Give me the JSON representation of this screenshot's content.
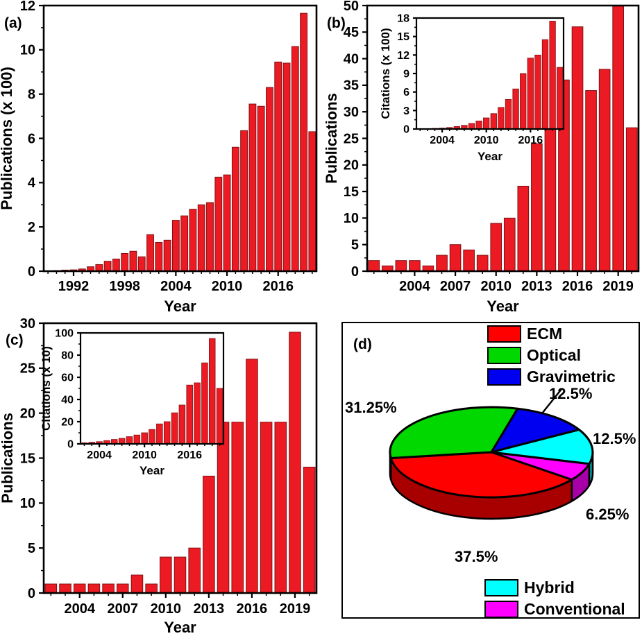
{
  "chart_data": [
    {
      "id": "a",
      "type": "bar",
      "panel_label": "(a)",
      "xlabel": "Year",
      "ylabel": "Publications (x 100)",
      "categories": [
        1989,
        1990,
        1991,
        1992,
        1993,
        1994,
        1995,
        1996,
        1997,
        1998,
        1999,
        2000,
        2001,
        2002,
        2003,
        2004,
        2005,
        2006,
        2007,
        2008,
        2009,
        2010,
        2011,
        2012,
        2013,
        2014,
        2015,
        2016,
        2017,
        2018,
        2019,
        2020
      ],
      "values": [
        0.02,
        0.03,
        0.05,
        0.06,
        0.1,
        0.2,
        0.3,
        0.45,
        0.55,
        0.8,
        0.9,
        0.65,
        1.65,
        1.3,
        1.4,
        2.3,
        2.5,
        2.8,
        3.0,
        3.1,
        4.25,
        4.35,
        5.6,
        6.35,
        7.55,
        7.45,
        8.3,
        9.45,
        9.4,
        10.15,
        11.65,
        6.3
      ],
      "ylim": [
        0,
        12
      ],
      "yticks": [
        0,
        2,
        4,
        6,
        8,
        10,
        12
      ],
      "xticks": [
        1992,
        1998,
        2004,
        2010,
        2016
      ],
      "bar_color": "#EC1B23",
      "bar_edge": "#7E1013"
    },
    {
      "id": "b",
      "type": "bar",
      "panel_label": "(b)",
      "xlabel": "Year",
      "ylabel": "Publications",
      "categories": [
        2001,
        2002,
        2003,
        2004,
        2005,
        2006,
        2007,
        2008,
        2009,
        2010,
        2011,
        2012,
        2013,
        2014,
        2015,
        2016,
        2017,
        2018,
        2019,
        2020
      ],
      "values": [
        2,
        1,
        2,
        2,
        1,
        3,
        5,
        4,
        3,
        9,
        10,
        16,
        24,
        31,
        36,
        46,
        34,
        38,
        50,
        27
      ],
      "ylim": [
        0,
        50
      ],
      "yticks": [
        0,
        5,
        10,
        15,
        20,
        25,
        30,
        35,
        40,
        45,
        50
      ],
      "xticks": [
        2004,
        2007,
        2010,
        2013,
        2016,
        2019
      ],
      "bar_color": "#EC1B23",
      "bar_edge": "#7E1013"
    },
    {
      "id": "b_inset",
      "type": "bar",
      "inset_of": "b",
      "xlabel": "Year",
      "ylabel": "Citations (x 100)",
      "categories": [
        2001,
        2002,
        2003,
        2004,
        2005,
        2006,
        2007,
        2008,
        2009,
        2010,
        2011,
        2012,
        2013,
        2014,
        2015,
        2016,
        2017,
        2018,
        2019,
        2020
      ],
      "values": [
        0.03,
        0.05,
        0.1,
        0.15,
        0.25,
        0.4,
        0.6,
        0.9,
        1.3,
        1.8,
        2.5,
        3.5,
        4.8,
        6.5,
        9,
        11.5,
        12,
        14.5,
        17.5,
        10
      ],
      "ylim": [
        0,
        18
      ],
      "yticks": [
        0,
        3,
        6,
        9,
        12,
        15,
        18
      ],
      "xticks": [
        2004,
        2010,
        2016
      ],
      "bar_color": "#EC1B23",
      "bar_edge": "#7E1013"
    },
    {
      "id": "c",
      "type": "bar",
      "panel_label": "(c)",
      "xlabel": "Year",
      "ylabel": "Publications",
      "categories": [
        2002,
        2003,
        2004,
        2005,
        2006,
        2007,
        2008,
        2009,
        2010,
        2011,
        2012,
        2013,
        2014,
        2015,
        2016,
        2017,
        2018,
        2019,
        2020
      ],
      "values": [
        1,
        1,
        1,
        1,
        1,
        1,
        2,
        1,
        4,
        4,
        5,
        13,
        19,
        19,
        26,
        19,
        19,
        29,
        14
      ],
      "ylim": [
        0,
        30
      ],
      "yticks": [
        0,
        5,
        10,
        15,
        20,
        25,
        30
      ],
      "xticks": [
        2004,
        2007,
        2010,
        2013,
        2016,
        2019
      ],
      "bar_color": "#EC1B23",
      "bar_edge": "#7E1013"
    },
    {
      "id": "c_inset",
      "type": "bar",
      "inset_of": "c",
      "xlabel": "Year",
      "ylabel": "Citations (x 10)",
      "categories": [
        2002,
        2003,
        2004,
        2005,
        2006,
        2007,
        2008,
        2009,
        2010,
        2011,
        2012,
        2013,
        2014,
        2015,
        2016,
        2017,
        2018,
        2019,
        2020
      ],
      "values": [
        1,
        1.5,
        2,
        3,
        4,
        5,
        6.5,
        8,
        10,
        13,
        18,
        20,
        28,
        35,
        53,
        55,
        73,
        95,
        50
      ],
      "ylim": [
        0,
        100
      ],
      "yticks": [
        0,
        20,
        40,
        60,
        80,
        100
      ],
      "xticks": [
        2004,
        2010,
        2016
      ],
      "bar_color": "#EC1B23",
      "bar_edge": "#7E1013"
    },
    {
      "id": "d",
      "type": "pie",
      "panel_label": "(d)",
      "slices": [
        {
          "label": "ECM",
          "pct": 37.5,
          "pct_label": "37.5%",
          "color": "#FE0000"
        },
        {
          "label": "Optical",
          "pct": 31.25,
          "pct_label": "31.25%",
          "color": "#00D800"
        },
        {
          "label": "Gravimetric",
          "pct": 12.5,
          "pct_label": "12.5%",
          "color": "#0000F0"
        },
        {
          "label": "Hybrid",
          "pct": 12.5,
          "pct_label": "12.5%",
          "color": "#00FFFF"
        },
        {
          "label": "Conventional",
          "pct": 6.25,
          "pct_label": "6.25%",
          "color": "#FF00FF"
        }
      ],
      "legend_top": [
        "ECM",
        "Optical",
        "Gravimetric"
      ],
      "legend_bottom": [
        "Hybrid",
        "Conventional"
      ],
      "start_deg": 15,
      "draw_order": [
        "Conventional",
        "ECM",
        "Optical",
        "Gravimetric",
        "Hybrid"
      ],
      "outline_color": "#000000"
    }
  ]
}
